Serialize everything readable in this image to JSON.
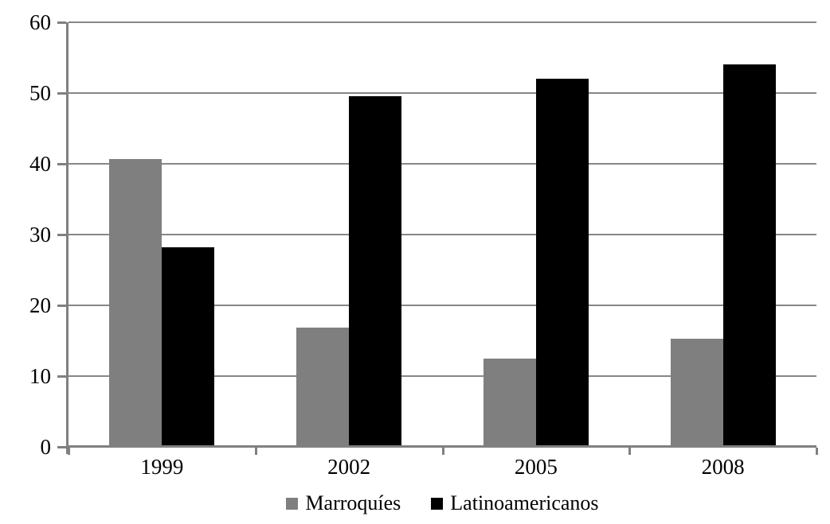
{
  "chart_data": {
    "type": "bar",
    "title": "",
    "xlabel": "",
    "ylabel": "",
    "categories": [
      "1999",
      "2002",
      "2005",
      "2008"
    ],
    "series": [
      {
        "name": "Marroquíes",
        "color": "#7f7f7f",
        "values": [
          40.7,
          16.8,
          12.5,
          15.3
        ]
      },
      {
        "name": "Latinoamericanos",
        "color": "#000000",
        "values": [
          28.2,
          49.5,
          52,
          54
        ]
      }
    ],
    "ylim": [
      0,
      60
    ],
    "yticks": [
      0,
      10,
      20,
      30,
      40,
      50,
      60
    ],
    "grid": "horizontal-only",
    "legend_position": "bottom"
  },
  "colors": {
    "background": "#ffffff",
    "gridline": "#878787",
    "axis": "#808080",
    "text": "#000000",
    "series_marroquies": "#7f7f7f",
    "series_latinoamericanos": "#000000"
  }
}
